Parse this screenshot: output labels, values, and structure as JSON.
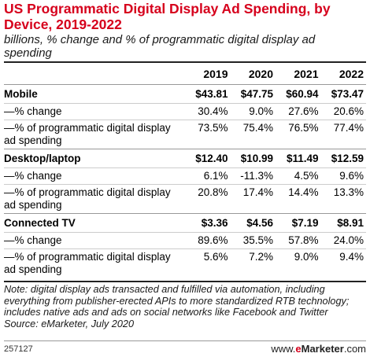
{
  "chart_data": {
    "type": "table",
    "title": "US Programmatic Digital Display Ad Spending, by Device, 2019-2022",
    "subtitle": "billions, % change and % of programmatic digital display ad spending",
    "columns": [
      "2019",
      "2020",
      "2021",
      "2022"
    ],
    "rows": [
      {
        "label": "Mobile",
        "kind": "group",
        "values": [
          "$43.81",
          "$47.75",
          "$60.94",
          "$73.47"
        ]
      },
      {
        "label": "—% change",
        "kind": "sub",
        "values": [
          "30.4%",
          "9.0%",
          "27.6%",
          "20.6%"
        ]
      },
      {
        "label": "—% of programmatic digital display ad spending",
        "kind": "sub",
        "values": [
          "73.5%",
          "75.4%",
          "76.5%",
          "77.4%"
        ]
      },
      {
        "label": "Desktop/laptop",
        "kind": "group",
        "values": [
          "$12.40",
          "$10.99",
          "$11.49",
          "$12.59"
        ]
      },
      {
        "label": "—% change",
        "kind": "sub",
        "values": [
          "6.1%",
          "-11.3%",
          "4.5%",
          "9.6%"
        ]
      },
      {
        "label": "—% of programmatic digital display ad spending",
        "kind": "sub",
        "values": [
          "20.8%",
          "17.4%",
          "14.4%",
          "13.3%"
        ]
      },
      {
        "label": "Connected TV",
        "kind": "group",
        "values": [
          "$3.36",
          "$4.56",
          "$7.19",
          "$8.91"
        ]
      },
      {
        "label": "—% change",
        "kind": "sub",
        "values": [
          "89.6%",
          "35.5%",
          "57.8%",
          "24.0%"
        ]
      },
      {
        "label": "—% of programmatic digital display ad spending",
        "kind": "sub",
        "values": [
          "5.6%",
          "7.2%",
          "9.0%",
          "9.4%"
        ]
      }
    ],
    "note": "Note: digital display ads transacted and fulfilled via automation, including everything from publisher-erected APIs to more standardized RTB technology; includes native ads and ads on social networks like Facebook and Twitter",
    "source": "Source: eMarketer, July 2020"
  },
  "footer": {
    "figure_id": "257127",
    "brand_prefix": "www.",
    "brand_e": "e",
    "brand_main": "Marketer",
    "brand_suffix": ".com"
  },
  "colors": {
    "title": "#d6001c",
    "brand_accent": "#d6001c"
  }
}
